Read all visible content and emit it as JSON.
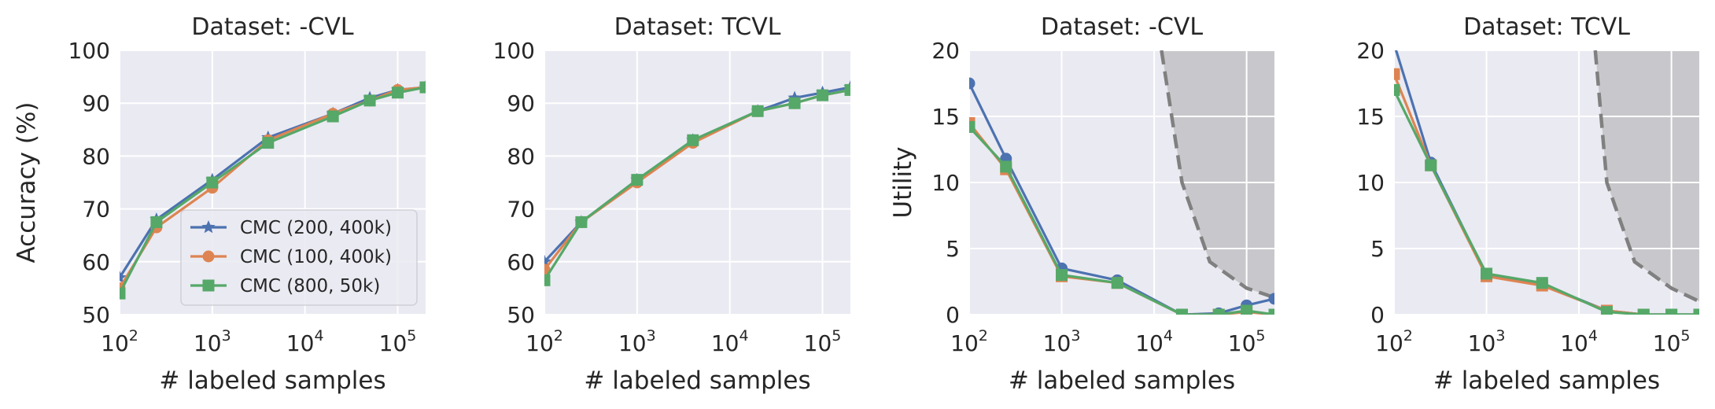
{
  "legend": {
    "placement": "lower-right of first panel",
    "entries": [
      "CMC (200, 400k)",
      "CMC (100, 400k)",
      "CMC (800, 50k)"
    ]
  },
  "chart_data": [
    {
      "type": "line",
      "title": "Dataset: -CVL",
      "xlabel": "# labeled samples",
      "ylabel": "Accuracy (%)",
      "xscale": "log",
      "xlim": [
        100,
        200000
      ],
      "ylim": [
        50,
        100
      ],
      "yticks": [
        50,
        60,
        70,
        80,
        90,
        100
      ],
      "grid": true,
      "x": [
        100,
        250,
        1000,
        4000,
        20000,
        50000,
        100000,
        200000
      ],
      "series": [
        {
          "name": "CMC (200, 400k)",
          "color": "#4c72b0",
          "marker": "star",
          "values": [
            57,
            68,
            75.5,
            83.5,
            88,
            91,
            92.5,
            93
          ]
        },
        {
          "name": "CMC (100, 400k)",
          "color": "#dd8452",
          "marker": "circle",
          "values": [
            55,
            66.5,
            74,
            83,
            88,
            90.5,
            92.5,
            93
          ]
        },
        {
          "name": "CMC (800, 50k)",
          "color": "#55a868",
          "marker": "square",
          "values": [
            54,
            67.5,
            75,
            82.5,
            87.5,
            90.5,
            92,
            93
          ]
        }
      ]
    },
    {
      "type": "line",
      "title": "Dataset: TCVL",
      "xlabel": "# labeled samples",
      "ylabel": "",
      "xscale": "log",
      "xlim": [
        100,
        200000
      ],
      "ylim": [
        50,
        100
      ],
      "yticks": [
        50,
        60,
        70,
        80,
        90,
        100
      ],
      "grid": true,
      "x": [
        100,
        250,
        1000,
        4000,
        20000,
        50000,
        100000,
        200000
      ],
      "series": [
        {
          "name": "CMC (200, 400k)",
          "color": "#4c72b0",
          "marker": "star",
          "values": [
            60,
            67.5,
            75.5,
            83,
            88.5,
            91,
            92,
            93
          ]
        },
        {
          "name": "CMC (100, 400k)",
          "color": "#dd8452",
          "marker": "circle",
          "values": [
            58.5,
            67.5,
            75,
            82.5,
            88.5,
            90,
            91.5,
            92.5
          ]
        },
        {
          "name": "CMC (800, 50k)",
          "color": "#55a868",
          "marker": "square",
          "values": [
            56.5,
            67.5,
            75.5,
            83,
            88.5,
            90,
            91.5,
            92.5
          ]
        }
      ]
    },
    {
      "type": "line",
      "title": "Dataset: -CVL",
      "xlabel": "# labeled samples",
      "ylabel": "Utility",
      "xscale": "log",
      "xlim": [
        100,
        200000
      ],
      "ylim": [
        0,
        20
      ],
      "yticks": [
        0,
        5,
        10,
        15,
        20
      ],
      "grid": true,
      "x": [
        100,
        250,
        1000,
        4000,
        20000,
        50000,
        100000,
        200000
      ],
      "series": [
        {
          "name": "CMC (200, 400k)",
          "color": "#4c72b0",
          "marker": "circle",
          "values": [
            17.5,
            11.8,
            3.5,
            2.6,
            0,
            0.1,
            0.7,
            1.2
          ]
        },
        {
          "name": "CMC (100, 400k)",
          "color": "#dd8452",
          "marker": "square",
          "values": [
            14.5,
            11,
            2.9,
            2.4,
            0,
            0,
            0.2,
            0
          ]
        },
        {
          "name": "CMC (800, 50k)",
          "color": "#55a868",
          "marker": "square",
          "values": [
            14.2,
            11.2,
            3,
            2.4,
            0,
            0,
            0.3,
            0
          ]
        }
      ],
      "boundary": {
        "style": "dashed",
        "color": "#808080",
        "shaded_region": "right",
        "x": [
          12000,
          20000,
          40000,
          100000,
          200000
        ],
        "y": [
          20,
          10,
          4,
          2,
          1.3
        ]
      }
    },
    {
      "type": "line",
      "title": "Dataset: TCVL",
      "xlabel": "# labeled samples",
      "ylabel": "",
      "xscale": "log",
      "xlim": [
        100,
        200000
      ],
      "ylim": [
        0,
        20
      ],
      "yticks": [
        0,
        5,
        10,
        15,
        20
      ],
      "grid": true,
      "x": [
        100,
        250,
        1000,
        4000,
        20000,
        50000,
        100000,
        200000
      ],
      "series": [
        {
          "name": "CMC (200, 400k)",
          "color": "#4c72b0",
          "marker": "circle",
          "values": [
            20.5,
            11.5,
            3,
            2.3,
            0.3,
            0,
            0,
            0
          ]
        },
        {
          "name": "CMC (100, 400k)",
          "color": "#dd8452",
          "marker": "square",
          "values": [
            18.2,
            11.3,
            2.9,
            2.2,
            0.3,
            0,
            0,
            0
          ]
        },
        {
          "name": "CMC (800, 50k)",
          "color": "#55a868",
          "marker": "square",
          "values": [
            17,
            11.3,
            3.1,
            2.4,
            0.2,
            0,
            0,
            0
          ]
        }
      ],
      "boundary": {
        "style": "dashed",
        "color": "#808080",
        "shaded_region": "right",
        "x": [
          15000,
          20000,
          40000,
          100000,
          200000
        ],
        "y": [
          20,
          10,
          4,
          2,
          1
        ]
      }
    }
  ]
}
